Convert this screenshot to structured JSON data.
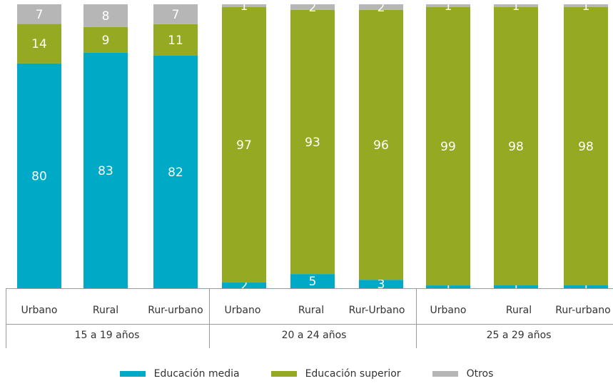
{
  "colors": {
    "media": "#00a9c6",
    "superior": "#95a923",
    "otros": "#b6b6b6",
    "axis": "#9a9a9a"
  },
  "legend": [
    {
      "key": "media",
      "label": "Educación media"
    },
    {
      "key": "superior",
      "label": "Educación superior"
    },
    {
      "key": "otros",
      "label": "Otros"
    }
  ],
  "chart_data": {
    "type": "bar",
    "stacked": true,
    "ylim": [
      0,
      100
    ],
    "grid": false,
    "legend_position": "bottom",
    "groups": [
      {
        "label": "15 a 19 años",
        "categories": [
          "Urbano",
          "Rural",
          "Rur-urbano"
        ]
      },
      {
        "label": "20 a 24 años",
        "categories": [
          "Urbano",
          "Rural",
          "Rur-Urbano"
        ]
      },
      {
        "label": "25 a 29  años",
        "categories": [
          "Urbano",
          "Rural",
          "Rur-urbano"
        ]
      }
    ],
    "categories": [
      "Urbano",
      "Rural",
      "Rur-urbano",
      "Urbano",
      "Rural",
      "Rur-Urbano",
      "Urbano",
      "Rural",
      "Rur-urbano"
    ],
    "series": [
      {
        "name": "Educación media",
        "key": "media",
        "values": [
          80,
          83,
          82,
          2,
          5,
          3,
          1,
          1,
          1
        ]
      },
      {
        "name": "Educación superior",
        "key": "superior",
        "values": [
          14,
          9,
          11,
          97,
          93,
          96,
          99,
          98,
          98
        ]
      },
      {
        "name": "Otros",
        "key": "otros",
        "values": [
          7,
          8,
          7,
          1,
          2,
          2,
          1,
          1,
          1
        ]
      }
    ]
  }
}
